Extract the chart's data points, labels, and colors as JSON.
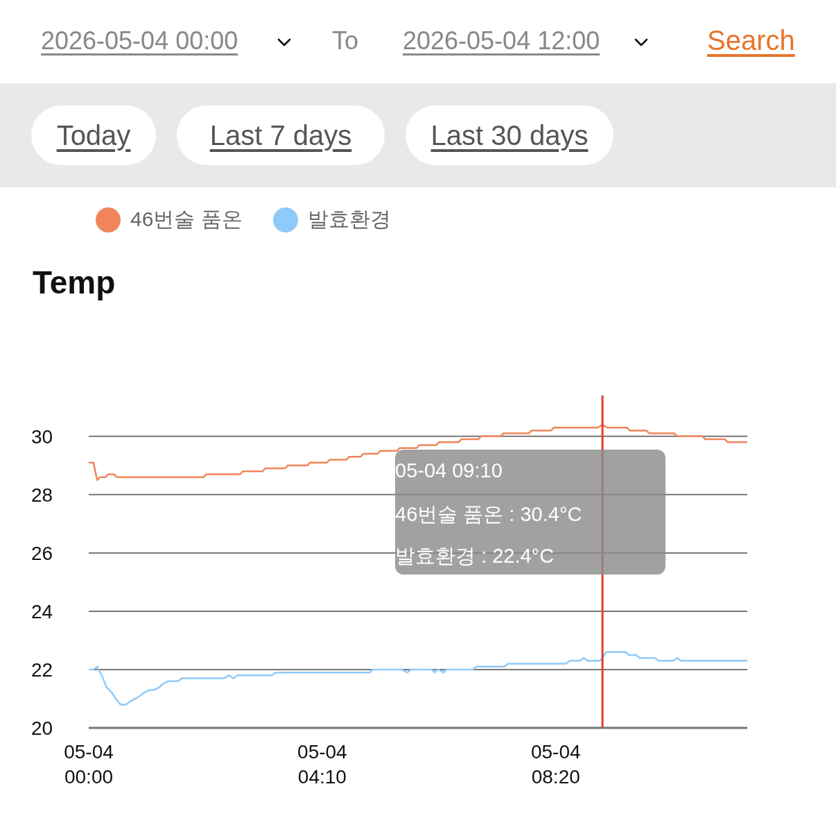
{
  "chart_data": {
    "type": "line",
    "title": "Temp",
    "annotations": [
      "2026-05-04 00:00",
      "To",
      "2026-05-04 12:00",
      "Search",
      "Today",
      "Last 7 days",
      "Last 30 days",
      "05-04 09:10",
      "46번술 품온 : 30.4°C",
      "발효환경 : 22.4°C"
    ],
    "xlim": [
      "2026-05-04T00:00",
      "2026-05-04T11:45"
    ],
    "xticks": [
      {
        "value": "2026-05-04T00:00",
        "label": "05-04 00:00"
      },
      {
        "value": "2026-05-04T04:10",
        "label": "05-04 04:10"
      },
      {
        "value": "2026-05-04T08:20",
        "label": "05-04 08:20"
      }
    ],
    "ylim": [
      20,
      31.4
    ],
    "yticks": [
      20,
      22,
      24,
      26,
      28,
      30
    ],
    "grid": "y",
    "legend": "top left",
    "marker": "none",
    "line_style": "solid",
    "ref_lines": [
      {
        "axis": "x",
        "value": "2026-05-04T09:10",
        "color": "#e53935"
      }
    ],
    "series": [
      {
        "name": "46번술 품온",
        "color": "#f0855a",
        "x": [
          "2026-05-04T00:00",
          "2026-05-04T00:05",
          "2026-05-04T00:09",
          "2026-05-04T00:12",
          "2026-05-04T00:18",
          "2026-05-04T00:21",
          "2026-05-04T00:27",
          "2026-05-04T00:30",
          "2026-05-04T02:03",
          "2026-05-04T02:06",
          "2026-05-04T02:42",
          "2026-05-04T02:45",
          "2026-05-04T03:06",
          "2026-05-04T03:09",
          "2026-05-04T03:30",
          "2026-05-04T03:33",
          "2026-05-04T03:54",
          "2026-05-04T03:57",
          "2026-05-04T04:15",
          "2026-05-04T04:18",
          "2026-05-04T04:36",
          "2026-05-04T04:39",
          "2026-05-04T04:51",
          "2026-05-04T04:54",
          "2026-05-04T05:09",
          "2026-05-04T05:12",
          "2026-05-04T05:30",
          "2026-05-04T05:33",
          "2026-05-04T05:51",
          "2026-05-04T05:54",
          "2026-05-04T06:12",
          "2026-05-04T06:15",
          "2026-05-04T06:36",
          "2026-05-04T06:39",
          "2026-05-04T06:57",
          "2026-05-04T07:00",
          "2026-05-04T07:21",
          "2026-05-04T07:24",
          "2026-05-04T07:51",
          "2026-05-04T07:54",
          "2026-05-04T08:15",
          "2026-05-04T08:18",
          "2026-05-04T09:05",
          "2026-05-04T09:10",
          "2026-05-04T09:15",
          "2026-05-04T09:36",
          "2026-05-04T09:39",
          "2026-05-04T09:57",
          "2026-05-04T10:00",
          "2026-05-04T10:27",
          "2026-05-04T10:30",
          "2026-05-04T10:57",
          "2026-05-04T11:00",
          "2026-05-04T11:21",
          "2026-05-04T11:24",
          "2026-05-04T11:45"
        ],
        "values": [
          29.1,
          29.1,
          28.5,
          28.6,
          28.6,
          28.7,
          28.7,
          28.6,
          28.6,
          28.7,
          28.7,
          28.8,
          28.8,
          28.9,
          28.9,
          29.0,
          29.0,
          29.1,
          29.1,
          29.2,
          29.2,
          29.3,
          29.3,
          29.4,
          29.4,
          29.5,
          29.5,
          29.6,
          29.6,
          29.7,
          29.7,
          29.8,
          29.8,
          29.9,
          29.9,
          30.0,
          30.0,
          30.1,
          30.1,
          30.2,
          30.2,
          30.3,
          30.3,
          30.4,
          30.3,
          30.3,
          30.2,
          30.2,
          30.1,
          30.1,
          30.0,
          30.0,
          29.9,
          29.9,
          29.8,
          29.8
        ]
      },
      {
        "name": "발효환경",
        "color": "#90caf9",
        "x": [
          "2026-05-04T00:00",
          "2026-05-04T00:05",
          "2026-05-04T00:09",
          "2026-05-04T00:14",
          "2026-05-04T00:19",
          "2026-05-04T00:25",
          "2026-05-04T00:29",
          "2026-05-04T00:34",
          "2026-05-04T00:40",
          "2026-05-04T00:44",
          "2026-05-04T00:50",
          "2026-05-04T00:55",
          "2026-05-04T00:59",
          "2026-05-04T01:05",
          "2026-05-04T01:10",
          "2026-05-04T01:16",
          "2026-05-04T01:19",
          "2026-05-04T01:25",
          "2026-05-04T01:35",
          "2026-05-04T01:40",
          "2026-05-04T02:25",
          "2026-05-04T02:30",
          "2026-05-04T02:35",
          "2026-05-04T02:39",
          "2026-05-04T03:16",
          "2026-05-04T03:20",
          "2026-05-04T05:01",
          "2026-05-04T05:04",
          "2026-05-04T05:35",
          "2026-05-04T05:41",
          "2026-05-04T05:45",
          "2026-05-04T06:07",
          "2026-05-04T06:10",
          "2026-05-04T06:14",
          "2026-05-04T06:20",
          "2026-05-04T06:23",
          "2026-05-04T06:51",
          "2026-05-04T06:55",
          "2026-05-04T07:25",
          "2026-05-04T07:29",
          "2026-05-04T08:31",
          "2026-05-04T08:35",
          "2026-05-04T08:46",
          "2026-05-04T08:50",
          "2026-05-04T08:54",
          "2026-05-04T09:07",
          "2026-05-04T09:10",
          "2026-05-04T09:14",
          "2026-05-04T09:35",
          "2026-05-04T09:38",
          "2026-05-04T09:46",
          "2026-05-04T09:50",
          "2026-05-04T10:06",
          "2026-05-04T10:10",
          "2026-05-04T10:26",
          "2026-05-04T10:30",
          "2026-05-04T10:34",
          "2026-05-04T11:45"
        ],
        "values": [
          22.0,
          22.0,
          22.1,
          21.8,
          21.4,
          21.2,
          21.0,
          20.8,
          20.8,
          20.9,
          21.0,
          21.1,
          21.2,
          21.3,
          21.3,
          21.4,
          21.5,
          21.6,
          21.6,
          21.7,
          21.7,
          21.8,
          21.7,
          21.8,
          21.8,
          21.9,
          21.9,
          22.0,
          22.0,
          21.9,
          22.0,
          22.0,
          21.9,
          22.0,
          21.9,
          22.0,
          22.0,
          22.1,
          22.1,
          22.2,
          22.2,
          22.3,
          22.3,
          22.4,
          22.3,
          22.3,
          22.4,
          22.6,
          22.6,
          22.5,
          22.5,
          22.4,
          22.4,
          22.3,
          22.3,
          22.4,
          22.3,
          22.3
        ]
      }
    ]
  }
}
